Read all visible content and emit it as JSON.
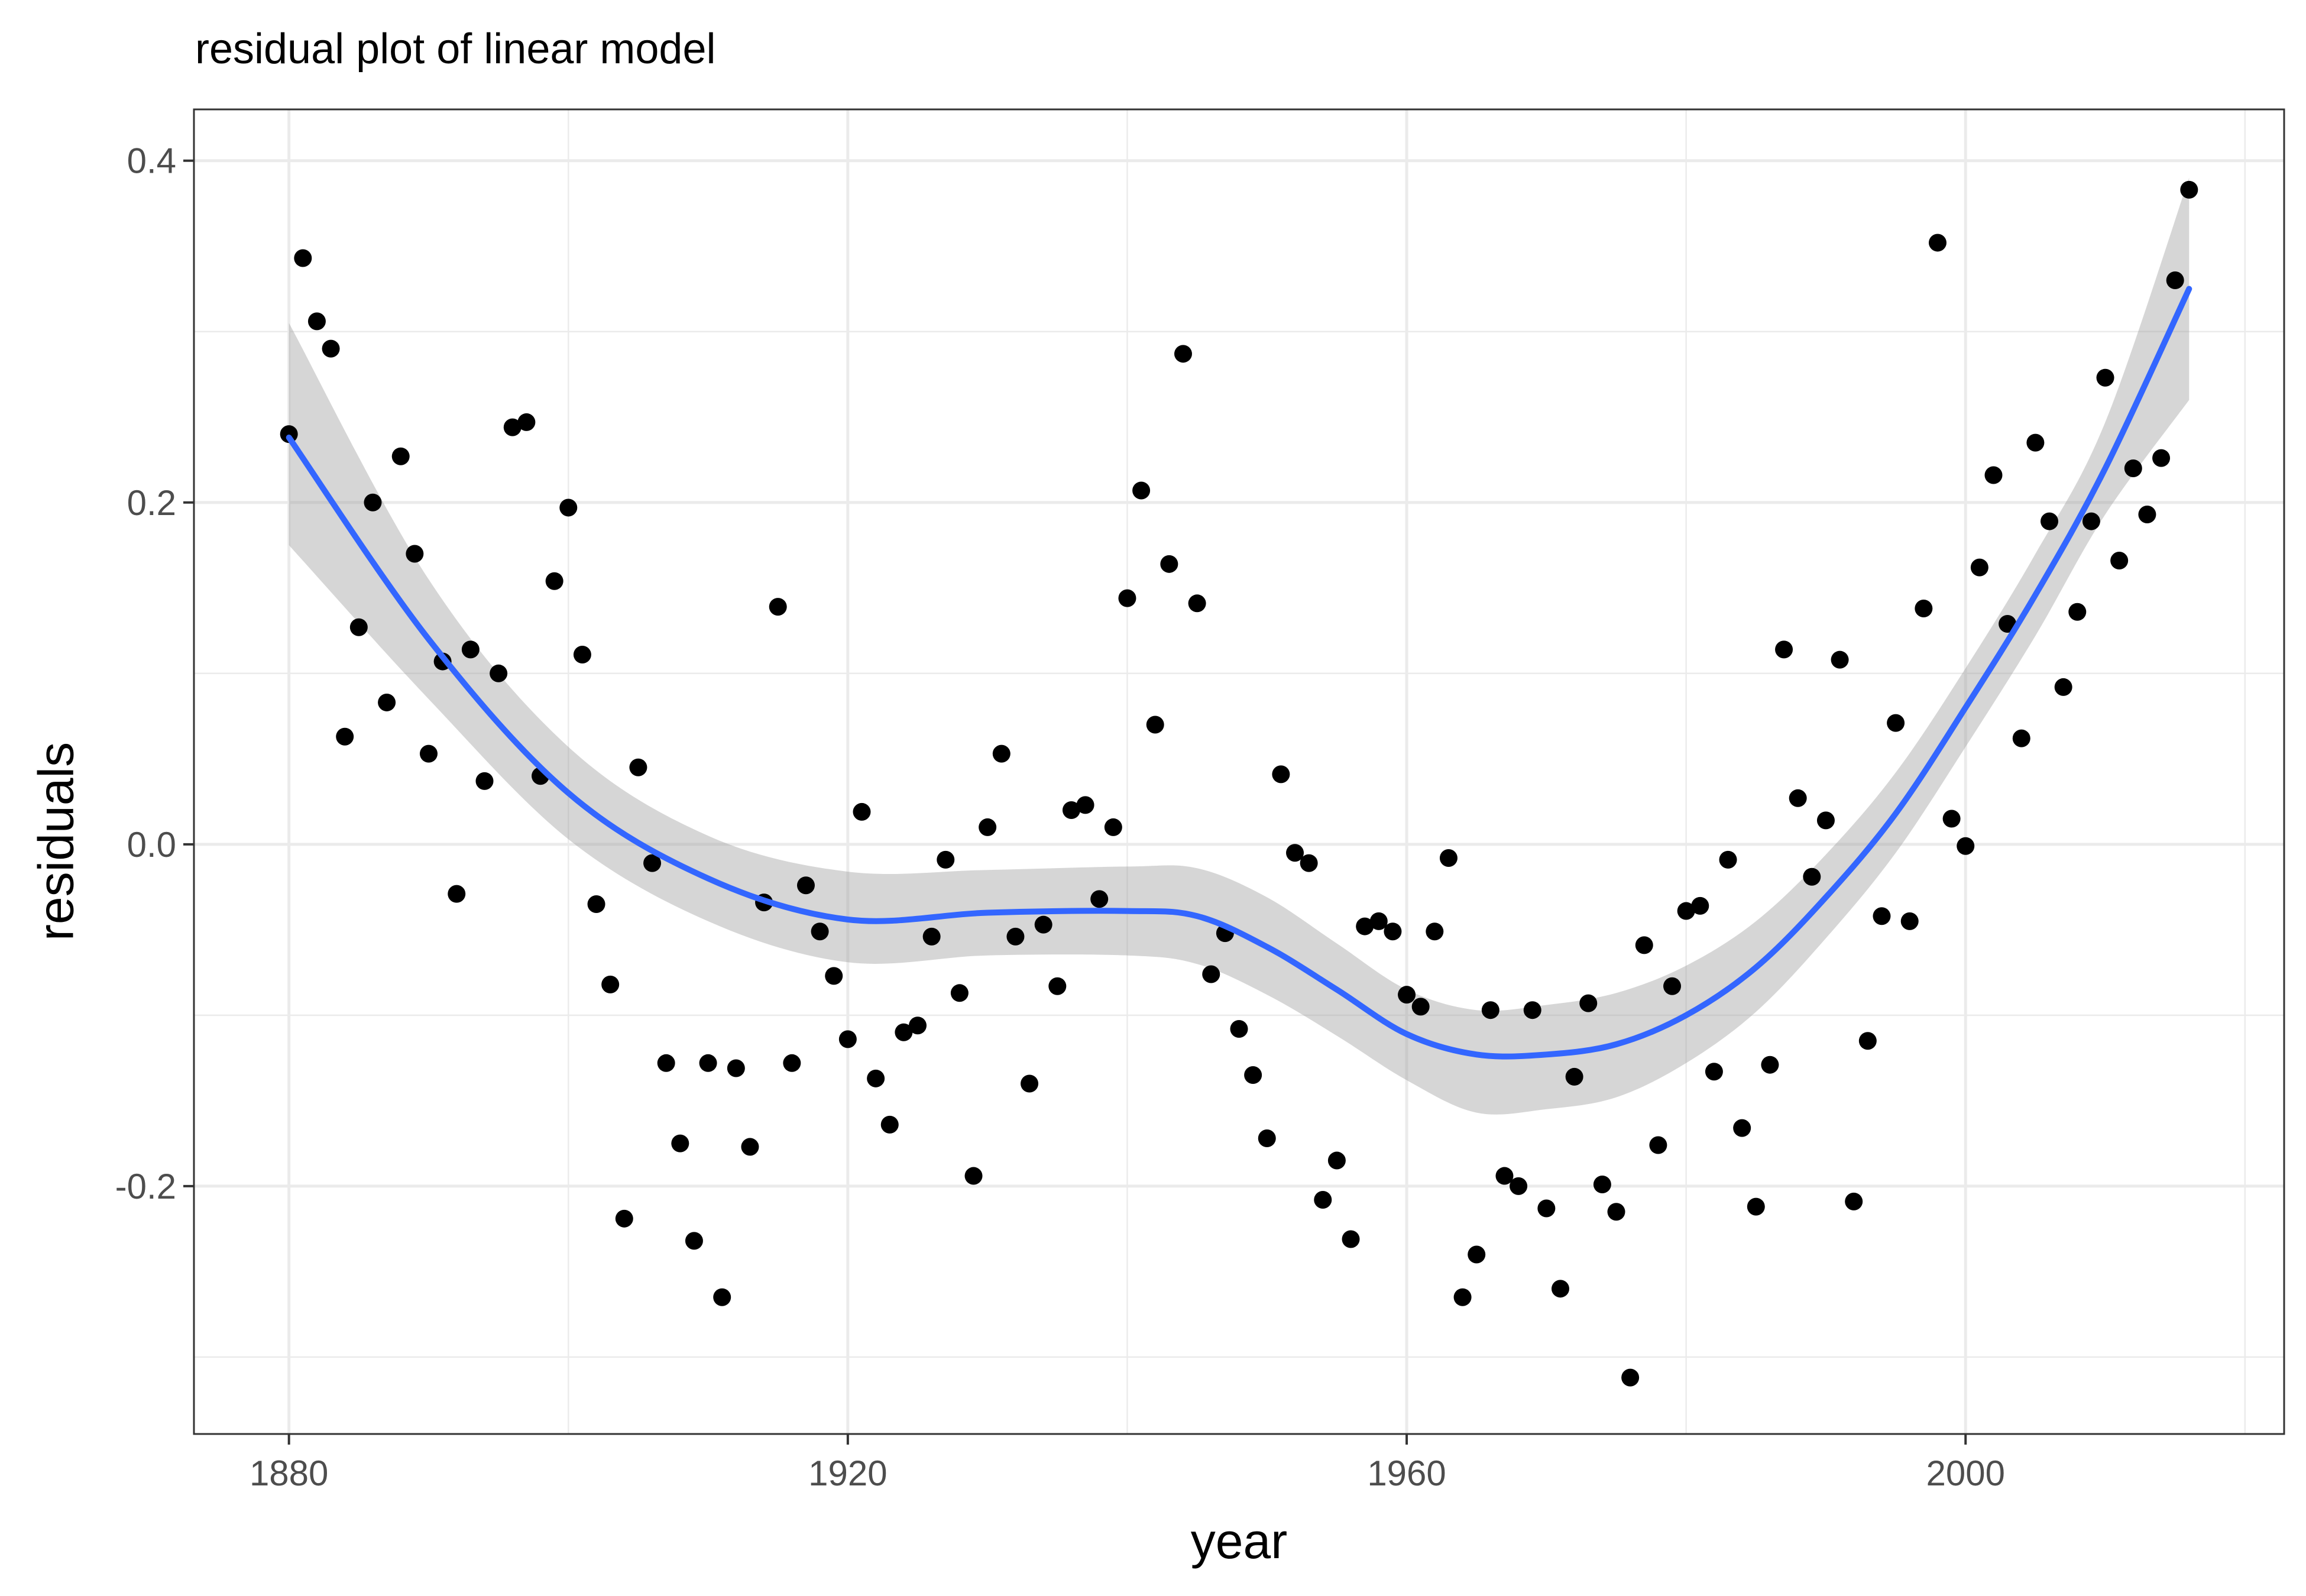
{
  "chart_data": {
    "type": "scatter",
    "title": "residual plot of linear model",
    "xlabel": "year",
    "ylabel": "residuals",
    "xlim": [
      1873.2,
      2022.8
    ],
    "ylim": [
      -0.345,
      0.43
    ],
    "x_ticks": [
      1880,
      1920,
      1960,
      2000
    ],
    "x_tick_labels": [
      "1880",
      "1920",
      "1960",
      "2000"
    ],
    "y_ticks": [
      -0.2,
      0.0,
      0.2,
      0.4
    ],
    "y_tick_labels": [
      "-0.2",
      "0.0",
      "0.2",
      "0.4"
    ],
    "grid": true,
    "legend": "none",
    "series": [
      {
        "kind": "points",
        "color": "#000000",
        "x": [
          1880,
          1881,
          1882,
          1883,
          1884,
          1885,
          1886,
          1887,
          1888,
          1889,
          1890,
          1891,
          1892,
          1893,
          1894,
          1895,
          1896,
          1897,
          1898,
          1899,
          1900,
          1901,
          1902,
          1903,
          1904,
          1905,
          1906,
          1907,
          1908,
          1909,
          1910,
          1911,
          1912,
          1913,
          1914,
          1915,
          1916,
          1917,
          1918,
          1919,
          1920,
          1921,
          1922,
          1923,
          1924,
          1925,
          1926,
          1927,
          1928,
          1929,
          1930,
          1931,
          1932,
          1933,
          1934,
          1935,
          1936,
          1937,
          1938,
          1939,
          1940,
          1941,
          1942,
          1943,
          1944,
          1945,
          1946,
          1947,
          1948,
          1949,
          1950,
          1951,
          1952,
          1953,
          1954,
          1955,
          1956,
          1957,
          1958,
          1959,
          1960,
          1961,
          1962,
          1963,
          1964,
          1965,
          1966,
          1967,
          1968,
          1969,
          1970,
          1971,
          1972,
          1973,
          1974,
          1975,
          1976,
          1977,
          1978,
          1979,
          1980,
          1981,
          1982,
          1983,
          1984,
          1985,
          1986,
          1987,
          1988,
          1989,
          1990,
          1991,
          1992,
          1993,
          1994,
          1995,
          1996,
          1997,
          1998,
          1999,
          2000,
          2001,
          2002,
          2003,
          2004,
          2005,
          2006,
          2007,
          2008,
          2009,
          2010,
          2011,
          2012,
          2013,
          2014,
          2015,
          2016
        ],
        "y": [
          0.24,
          0.343,
          0.306,
          0.29,
          0.063,
          0.127,
          0.2,
          0.083,
          0.227,
          0.17,
          0.053,
          0.107,
          -0.029,
          0.114,
          0.037,
          0.1,
          0.244,
          0.247,
          0.04,
          0.154,
          0.197,
          0.111,
          -0.035,
          -0.082,
          -0.219,
          0.045,
          -0.011,
          -0.128,
          -0.175,
          -0.232,
          -0.128,
          -0.265,
          -0.131,
          -0.177,
          -0.034,
          0.139,
          -0.128,
          -0.024,
          -0.051,
          -0.077,
          -0.114,
          0.019,
          -0.137,
          -0.164,
          -0.11,
          -0.106,
          -0.054,
          -0.009,
          -0.087,
          -0.194,
          0.01,
          0.053,
          -0.054,
          -0.14,
          -0.047,
          -0.083,
          0.02,
          0.023,
          -0.032,
          0.01,
          0.144,
          0.207,
          0.07,
          0.164,
          0.287,
          0.141,
          -0.076,
          -0.052,
          -0.108,
          -0.135,
          -0.172,
          0.041,
          -0.005,
          -0.011,
          -0.208,
          -0.185,
          -0.231,
          -0.048,
          -0.045,
          -0.051,
          -0.088,
          -0.095,
          -0.051,
          -0.008,
          -0.265,
          -0.24,
          -0.097,
          -0.194,
          -0.2,
          -0.097,
          -0.213,
          -0.26,
          -0.136,
          -0.093,
          -0.199,
          -0.215,
          -0.312,
          -0.059,
          -0.176,
          -0.083,
          -0.039,
          -0.036,
          -0.133,
          -0.009,
          -0.166,
          -0.212,
          -0.129,
          0.114,
          0.027,
          -0.019,
          0.014,
          0.108,
          -0.209,
          -0.115,
          -0.042,
          0.071,
          -0.045,
          0.138,
          0.352,
          0.015,
          -0.001,
          0.162,
          0.216,
          0.129,
          0.062,
          0.235,
          0.189,
          0.092,
          0.136,
          0.189,
          0.273,
          0.166,
          0.22,
          0.193,
          0.226,
          0.33,
          0.383
        ]
      },
      {
        "kind": "smooth",
        "color": "#3366FF",
        "x": [
          1880,
          1890,
          1900,
          1910,
          1920,
          1930,
          1940,
          1945,
          1950,
          1955,
          1960,
          1965,
          1970,
          1975,
          1980,
          1985,
          1990,
          1995,
          2000,
          2005,
          2010,
          2016
        ],
        "y": [
          0.238,
          0.12,
          0.03,
          -0.02,
          -0.044,
          -0.04,
          -0.039,
          -0.042,
          -0.06,
          -0.085,
          -0.111,
          -0.123,
          -0.123,
          -0.117,
          -0.1,
          -0.072,
          -0.031,
          0.018,
          0.08,
          0.146,
          0.22,
          0.325
        ],
        "band_lower": [
          0.175,
          0.085,
          0.003,
          -0.045,
          -0.069,
          -0.065,
          -0.065,
          -0.07,
          -0.088,
          -0.112,
          -0.138,
          -0.157,
          -0.155,
          -0.148,
          -0.128,
          -0.098,
          -0.055,
          -0.005,
          0.057,
          0.122,
          0.193,
          0.26
        ],
        "band_upper": [
          0.305,
          0.155,
          0.057,
          0.005,
          -0.016,
          -0.015,
          -0.013,
          -0.014,
          -0.031,
          -0.058,
          -0.085,
          -0.097,
          -0.094,
          -0.087,
          -0.071,
          -0.045,
          -0.006,
          0.042,
          0.103,
          0.17,
          0.247,
          0.39
        ]
      }
    ]
  }
}
